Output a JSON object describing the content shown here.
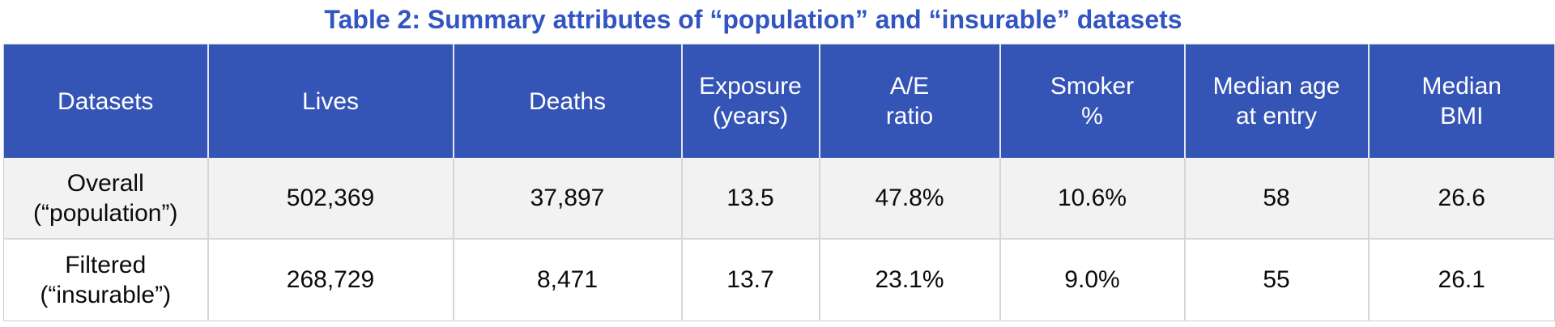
{
  "chart_data": {
    "type": "table",
    "title": "Table 2: Summary attributes of “population” and “insurable” datasets",
    "columns": [
      {
        "id": "datasets",
        "lines": [
          "Datasets"
        ]
      },
      {
        "id": "lives",
        "lines": [
          "Lives"
        ]
      },
      {
        "id": "deaths",
        "lines": [
          "Deaths"
        ]
      },
      {
        "id": "exposure-years",
        "lines": [
          "Exposure",
          "(years)"
        ]
      },
      {
        "id": "ae-ratio",
        "lines": [
          "A/E",
          "ratio"
        ]
      },
      {
        "id": "smoker-pct",
        "lines": [
          "Smoker",
          "%"
        ]
      },
      {
        "id": "median-age-at-entry",
        "lines": [
          "Median age",
          "at entry"
        ]
      },
      {
        "id": "median-bmi",
        "lines": [
          "Median",
          "BMI"
        ]
      }
    ],
    "rows": [
      {
        "id": "overall-population",
        "label_lines": [
          "Overall",
          "(“population”)"
        ],
        "values": [
          "502,369",
          "37,897",
          "13.5",
          "47.8%",
          "10.6%",
          "58",
          "26.6"
        ]
      },
      {
        "id": "filtered-insurable",
        "label_lines": [
          "Filtered",
          "(“insurable”)"
        ],
        "values": [
          "268,729",
          "8,471",
          "13.7",
          "23.1%",
          "9.0%",
          "55",
          "26.1"
        ]
      }
    ]
  },
  "colors": {
    "title_text": "#3355C2",
    "header_bg": "#3454B6",
    "header_text": "#FFFFFF",
    "header_divider": "#E4E7F2",
    "row_odd_bg": "#F2F2F2",
    "row_even_bg": "#FFFFFF",
    "body_text": "#0B0B0B",
    "grid_line": "#D6D6D6"
  }
}
